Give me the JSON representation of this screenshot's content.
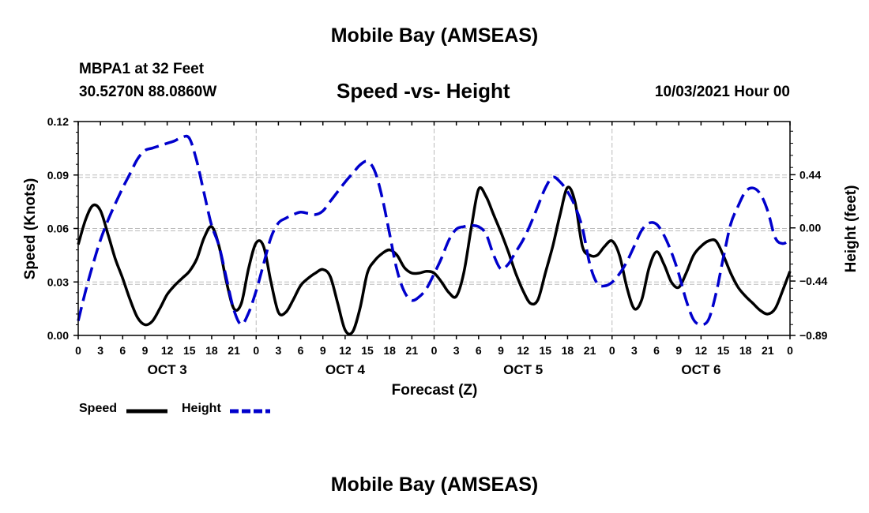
{
  "header": {
    "title": "Mobile Bay (AMSEAS)",
    "station": "MBPA1 at 32 Feet",
    "coords": "30.5270N  88.0860W",
    "chart_title": "Speed -vs- Height",
    "date": "10/03/2021 Hour 00"
  },
  "footer": {
    "title": "Mobile Bay (AMSEAS)"
  },
  "colors": {
    "speed": "#000000",
    "height": "#0000cc",
    "grid": "#bbbbbb"
  },
  "chart_data": {
    "type": "line",
    "title": "Speed -vs- Height",
    "xlabel": "Forecast (Z)",
    "ylabel": "Speed (Knots)",
    "y2label": "Height (feet)",
    "xlim": [
      0,
      96
    ],
    "ylim": [
      0,
      0.12
    ],
    "y2lim": [
      -0.89,
      0.88
    ],
    "yticks": [
      {
        "value": 0.0,
        "label": "0.00"
      },
      {
        "value": 0.03,
        "label": "0.03"
      },
      {
        "value": 0.06,
        "label": "0.06"
      },
      {
        "value": 0.09,
        "label": "0.09"
      },
      {
        "value": 0.12,
        "label": "0.12"
      }
    ],
    "y2ticks": [
      {
        "value": 0.44,
        "label": "0.44"
      },
      {
        "value": 0.0,
        "label": "0.00"
      },
      {
        "value": -0.44,
        "label": "−0.44"
      },
      {
        "value": -0.89,
        "label": "−0.89"
      }
    ],
    "xticks": [
      {
        "value": 0,
        "label": "0"
      },
      {
        "value": 3,
        "label": "3"
      },
      {
        "value": 6,
        "label": "6"
      },
      {
        "value": 9,
        "label": "9"
      },
      {
        "value": 12,
        "label": "12"
      },
      {
        "value": 15,
        "label": "15"
      },
      {
        "value": 18,
        "label": "18"
      },
      {
        "value": 21,
        "label": "21"
      },
      {
        "value": 24,
        "label": "0"
      },
      {
        "value": 27,
        "label": "3"
      },
      {
        "value": 30,
        "label": "6"
      },
      {
        "value": 33,
        "label": "9"
      },
      {
        "value": 36,
        "label": "12"
      },
      {
        "value": 39,
        "label": "15"
      },
      {
        "value": 42,
        "label": "18"
      },
      {
        "value": 45,
        "label": "21"
      },
      {
        "value": 48,
        "label": "0"
      },
      {
        "value": 51,
        "label": "3"
      },
      {
        "value": 54,
        "label": "6"
      },
      {
        "value": 57,
        "label": "9"
      },
      {
        "value": 60,
        "label": "12"
      },
      {
        "value": 63,
        "label": "15"
      },
      {
        "value": 66,
        "label": "18"
      },
      {
        "value": 69,
        "label": "21"
      },
      {
        "value": 72,
        "label": "0"
      },
      {
        "value": 75,
        "label": "3"
      },
      {
        "value": 78,
        "label": "6"
      },
      {
        "value": 81,
        "label": "9"
      },
      {
        "value": 84,
        "label": "12"
      },
      {
        "value": 87,
        "label": "15"
      },
      {
        "value": 90,
        "label": "18"
      },
      {
        "value": 93,
        "label": "21"
      },
      {
        "value": 96,
        "label": "0"
      }
    ],
    "day_labels": [
      {
        "hour": 12,
        "label": "OCT 3"
      },
      {
        "hour": 36,
        "label": "OCT 4"
      },
      {
        "hour": 60,
        "label": "OCT 5"
      },
      {
        "hour": 84,
        "label": "OCT 6"
      }
    ],
    "series": [
      {
        "name": "Speed",
        "axis": "left",
        "style": "solid",
        "points": [
          [
            0,
            0.051
          ],
          [
            1,
            0.065
          ],
          [
            2,
            0.073
          ],
          [
            3,
            0.07
          ],
          [
            4,
            0.057
          ],
          [
            5,
            0.043
          ],
          [
            6,
            0.032
          ],
          [
            7,
            0.02
          ],
          [
            8,
            0.01
          ],
          [
            9,
            0.006
          ],
          [
            10,
            0.008
          ],
          [
            11,
            0.015
          ],
          [
            12,
            0.023
          ],
          [
            13,
            0.028
          ],
          [
            14,
            0.032
          ],
          [
            15,
            0.036
          ],
          [
            16,
            0.043
          ],
          [
            17,
            0.055
          ],
          [
            18,
            0.061
          ],
          [
            19,
            0.05
          ],
          [
            20,
            0.03
          ],
          [
            21,
            0.015
          ],
          [
            22,
            0.018
          ],
          [
            23,
            0.038
          ],
          [
            24,
            0.052
          ],
          [
            25,
            0.05
          ],
          [
            26,
            0.03
          ],
          [
            27,
            0.013
          ],
          [
            28,
            0.013
          ],
          [
            29,
            0.02
          ],
          [
            30,
            0.028
          ],
          [
            31,
            0.032
          ],
          [
            32,
            0.035
          ],
          [
            33,
            0.037
          ],
          [
            34,
            0.033
          ],
          [
            35,
            0.018
          ],
          [
            36,
            0.003
          ],
          [
            37,
            0.002
          ],
          [
            38,
            0.015
          ],
          [
            39,
            0.035
          ],
          [
            40,
            0.042
          ],
          [
            41,
            0.046
          ],
          [
            42,
            0.048
          ],
          [
            43,
            0.045
          ],
          [
            44,
            0.038
          ],
          [
            45,
            0.035
          ],
          [
            46,
            0.035
          ],
          [
            47,
            0.036
          ],
          [
            48,
            0.035
          ],
          [
            49,
            0.03
          ],
          [
            50,
            0.024
          ],
          [
            51,
            0.022
          ],
          [
            52,
            0.035
          ],
          [
            53,
            0.06
          ],
          [
            54,
            0.082
          ],
          [
            55,
            0.078
          ],
          [
            56,
            0.068
          ],
          [
            57,
            0.058
          ],
          [
            58,
            0.047
          ],
          [
            59,
            0.035
          ],
          [
            60,
            0.025
          ],
          [
            61,
            0.018
          ],
          [
            62,
            0.02
          ],
          [
            63,
            0.035
          ],
          [
            64,
            0.05
          ],
          [
            65,
            0.068
          ],
          [
            66,
            0.083
          ],
          [
            67,
            0.075
          ],
          [
            68,
            0.05
          ],
          [
            69,
            0.045
          ],
          [
            70,
            0.045
          ],
          [
            71,
            0.05
          ],
          [
            72,
            0.053
          ],
          [
            73,
            0.045
          ],
          [
            74,
            0.027
          ],
          [
            75,
            0.015
          ],
          [
            76,
            0.02
          ],
          [
            77,
            0.038
          ],
          [
            78,
            0.047
          ],
          [
            79,
            0.04
          ],
          [
            80,
            0.03
          ],
          [
            81,
            0.027
          ],
          [
            82,
            0.035
          ],
          [
            83,
            0.045
          ],
          [
            84,
            0.05
          ],
          [
            85,
            0.053
          ],
          [
            86,
            0.053
          ],
          [
            87,
            0.045
          ],
          [
            88,
            0.035
          ],
          [
            89,
            0.027
          ],
          [
            90,
            0.022
          ],
          [
            91,
            0.018
          ],
          [
            92,
            0.014
          ],
          [
            93,
            0.012
          ],
          [
            94,
            0.015
          ],
          [
            95,
            0.025
          ],
          [
            96,
            0.036
          ]
        ]
      },
      {
        "name": "Height",
        "axis": "right",
        "style": "dashed",
        "points": [
          [
            0,
            -0.77
          ],
          [
            1,
            -0.52
          ],
          [
            2,
            -0.3
          ],
          [
            3,
            -0.1
          ],
          [
            4,
            0.06
          ],
          [
            5,
            0.2
          ],
          [
            6,
            0.33
          ],
          [
            7,
            0.45
          ],
          [
            8,
            0.57
          ],
          [
            9,
            0.64
          ],
          [
            10,
            0.66
          ],
          [
            11,
            0.68
          ],
          [
            12,
            0.7
          ],
          [
            13,
            0.72
          ],
          [
            14,
            0.75
          ],
          [
            15,
            0.74
          ],
          [
            16,
            0.55
          ],
          [
            17,
            0.28
          ],
          [
            18,
            0.02
          ],
          [
            19,
            -0.15
          ],
          [
            20,
            -0.42
          ],
          [
            21,
            -0.68
          ],
          [
            22,
            -0.8
          ],
          [
            23,
            -0.7
          ],
          [
            24,
            -0.52
          ],
          [
            25,
            -0.3
          ],
          [
            26,
            -0.08
          ],
          [
            27,
            0.04
          ],
          [
            28,
            0.08
          ],
          [
            29,
            0.11
          ],
          [
            30,
            0.13
          ],
          [
            31,
            0.12
          ],
          [
            32,
            0.11
          ],
          [
            33,
            0.14
          ],
          [
            34,
            0.22
          ],
          [
            35,
            0.3
          ],
          [
            36,
            0.38
          ],
          [
            37,
            0.45
          ],
          [
            38,
            0.52
          ],
          [
            39,
            0.55
          ],
          [
            40,
            0.47
          ],
          [
            41,
            0.25
          ],
          [
            42,
            -0.05
          ],
          [
            43,
            -0.35
          ],
          [
            44,
            -0.53
          ],
          [
            45,
            -0.6
          ],
          [
            46,
            -0.57
          ],
          [
            47,
            -0.5
          ],
          [
            48,
            -0.38
          ],
          [
            49,
            -0.25
          ],
          [
            50,
            -0.1
          ],
          [
            51,
            -0.01
          ],
          [
            52,
            0.01
          ],
          [
            53,
            0.02
          ],
          [
            54,
            0.01
          ],
          [
            55,
            -0.05
          ],
          [
            56,
            -0.22
          ],
          [
            57,
            -0.34
          ],
          [
            58,
            -0.3
          ],
          [
            59,
            -0.2
          ],
          [
            60,
            -0.1
          ],
          [
            61,
            0.03
          ],
          [
            62,
            0.18
          ],
          [
            63,
            0.33
          ],
          [
            64,
            0.42
          ],
          [
            65,
            0.38
          ],
          [
            66,
            0.3
          ],
          [
            67,
            0.18
          ],
          [
            68,
            0.0
          ],
          [
            69,
            -0.3
          ],
          [
            70,
            -0.46
          ],
          [
            71,
            -0.48
          ],
          [
            72,
            -0.45
          ],
          [
            73,
            -0.38
          ],
          [
            74,
            -0.28
          ],
          [
            75,
            -0.15
          ],
          [
            76,
            -0.02
          ],
          [
            77,
            0.04
          ],
          [
            78,
            0.03
          ],
          [
            79,
            -0.06
          ],
          [
            80,
            -0.2
          ],
          [
            81,
            -0.38
          ],
          [
            82,
            -0.6
          ],
          [
            83,
            -0.76
          ],
          [
            84,
            -0.8
          ],
          [
            85,
            -0.76
          ],
          [
            86,
            -0.55
          ],
          [
            87,
            -0.25
          ],
          [
            88,
            0.03
          ],
          [
            89,
            0.18
          ],
          [
            90,
            0.3
          ],
          [
            91,
            0.33
          ],
          [
            92,
            0.28
          ],
          [
            93,
            0.14
          ],
          [
            94,
            -0.08
          ],
          [
            95,
            -0.13
          ],
          [
            96,
            -0.1
          ]
        ]
      }
    ]
  },
  "legend": {
    "items": [
      {
        "label": "Speed",
        "color": "#000000",
        "style": "solid"
      },
      {
        "label": "Height",
        "color": "#0000cc",
        "style": "dashed"
      }
    ]
  }
}
